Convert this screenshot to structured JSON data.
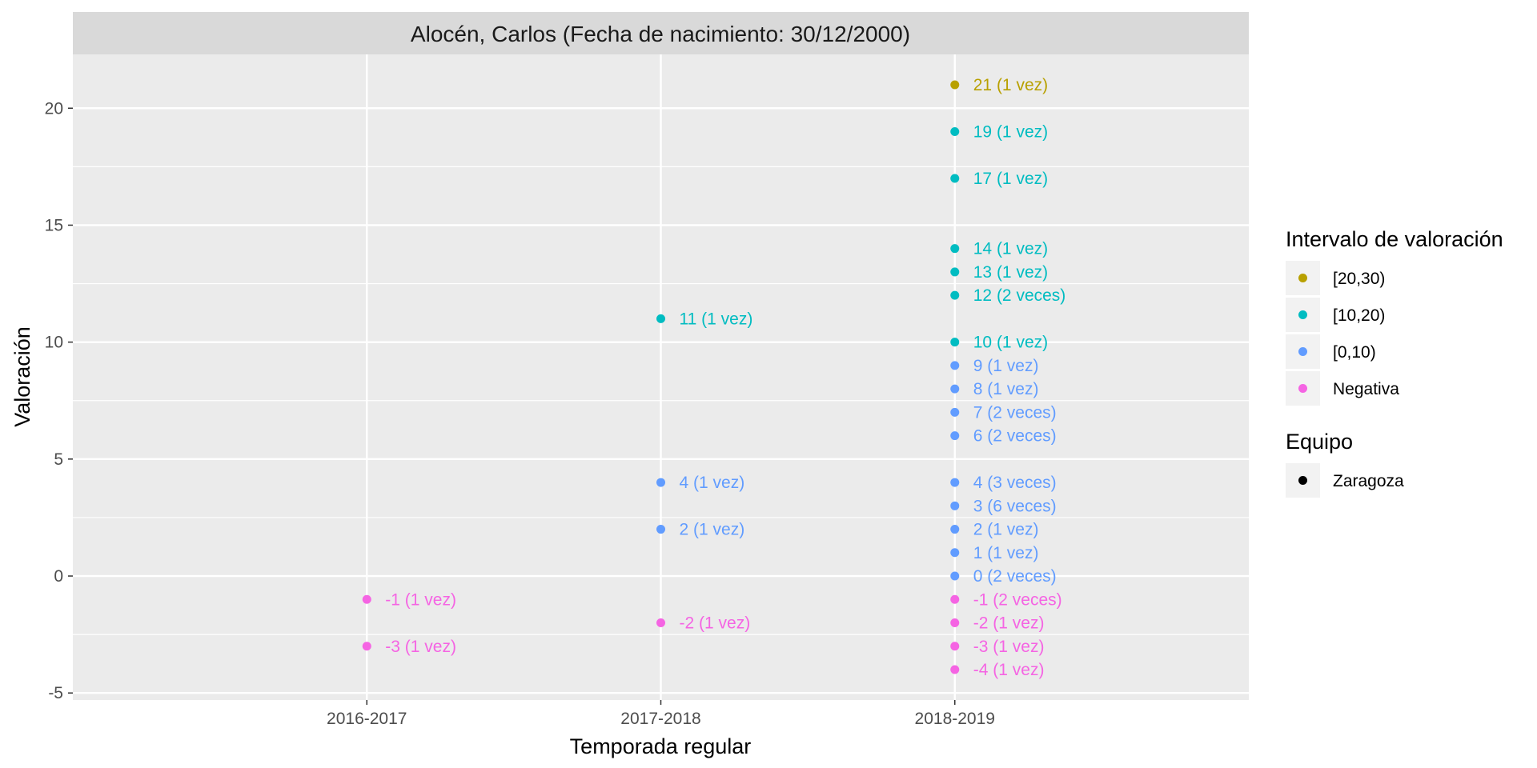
{
  "chart_data": {
    "type": "scatter",
    "title": "Alocén, Carlos (Fecha de nacimiento: 30/12/2000)",
    "xlabel": "Temporada regular",
    "ylabel": "Valoración",
    "categories": [
      "2016-2017",
      "2017-2018",
      "2018-2019"
    ],
    "ylim": [
      -5.3,
      22.3
    ],
    "yticks": [
      -5,
      0,
      5,
      10,
      15,
      20
    ],
    "grid": true,
    "colors": {
      "[20,30)": "#b8a000",
      "[10,20)": "#00bcc1",
      "[0,10)": "#619cff",
      "Negativa": "#f564e3"
    },
    "points": [
      {
        "x": "2016-2017",
        "y": -1,
        "label": "-1 (1 vez)",
        "interval": "Negativa"
      },
      {
        "x": "2016-2017",
        "y": -3,
        "label": "-3 (1 vez)",
        "interval": "Negativa"
      },
      {
        "x": "2017-2018",
        "y": 11,
        "label": "11 (1 vez)",
        "interval": "[10,20)"
      },
      {
        "x": "2017-2018",
        "y": 4,
        "label": "4 (1 vez)",
        "interval": "[0,10)"
      },
      {
        "x": "2017-2018",
        "y": 2,
        "label": "2 (1 vez)",
        "interval": "[0,10)"
      },
      {
        "x": "2017-2018",
        "y": -2,
        "label": "-2 (1 vez)",
        "interval": "Negativa"
      },
      {
        "x": "2018-2019",
        "y": 21,
        "label": "21 (1 vez)",
        "interval": "[20,30)"
      },
      {
        "x": "2018-2019",
        "y": 19,
        "label": "19 (1 vez)",
        "interval": "[10,20)"
      },
      {
        "x": "2018-2019",
        "y": 17,
        "label": "17 (1 vez)",
        "interval": "[10,20)"
      },
      {
        "x": "2018-2019",
        "y": 14,
        "label": "14 (1 vez)",
        "interval": "[10,20)"
      },
      {
        "x": "2018-2019",
        "y": 13,
        "label": "13 (1 vez)",
        "interval": "[10,20)"
      },
      {
        "x": "2018-2019",
        "y": 12,
        "label": "12 (2 veces)",
        "interval": "[10,20)"
      },
      {
        "x": "2018-2019",
        "y": 10,
        "label": "10 (1 vez)",
        "interval": "[10,20)"
      },
      {
        "x": "2018-2019",
        "y": 9,
        "label": "9 (1 vez)",
        "interval": "[0,10)"
      },
      {
        "x": "2018-2019",
        "y": 8,
        "label": "8 (1 vez)",
        "interval": "[0,10)"
      },
      {
        "x": "2018-2019",
        "y": 7,
        "label": "7 (2 veces)",
        "interval": "[0,10)"
      },
      {
        "x": "2018-2019",
        "y": 6,
        "label": "6 (2 veces)",
        "interval": "[0,10)"
      },
      {
        "x": "2018-2019",
        "y": 4,
        "label": "4 (3 veces)",
        "interval": "[0,10)"
      },
      {
        "x": "2018-2019",
        "y": 3,
        "label": "3 (6 veces)",
        "interval": "[0,10)"
      },
      {
        "x": "2018-2019",
        "y": 2,
        "label": "2 (1 vez)",
        "interval": "[0,10)"
      },
      {
        "x": "2018-2019",
        "y": 1,
        "label": "1 (1 vez)",
        "interval": "[0,10)"
      },
      {
        "x": "2018-2019",
        "y": 0,
        "label": "0 (2 veces)",
        "interval": "[0,10)"
      },
      {
        "x": "2018-2019",
        "y": -1,
        "label": "-1 (2 veces)",
        "interval": "Negativa"
      },
      {
        "x": "2018-2019",
        "y": -2,
        "label": "-2 (1 vez)",
        "interval": "Negativa"
      },
      {
        "x": "2018-2019",
        "y": -3,
        "label": "-3 (1 vez)",
        "interval": "Negativa"
      },
      {
        "x": "2018-2019",
        "y": -4,
        "label": "-4 (1 vez)",
        "interval": "Negativa"
      }
    ],
    "legends": [
      {
        "title": "Intervalo de valoración",
        "entries": [
          "[20,30)",
          "[10,20)",
          "[0,10)",
          "Negativa"
        ]
      },
      {
        "title": "Equipo",
        "entries": [
          "Zaragoza"
        ],
        "color": "#000000"
      }
    ]
  }
}
